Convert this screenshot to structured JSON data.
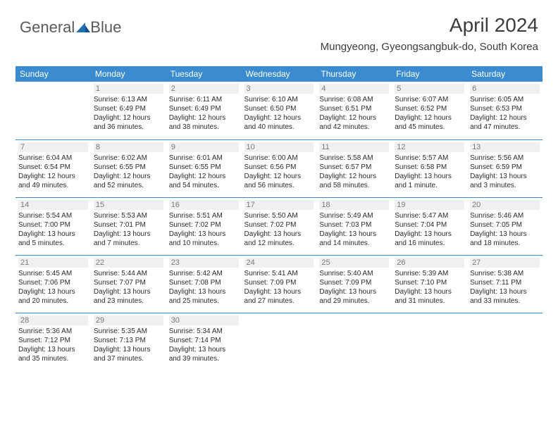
{
  "logo": {
    "word1": "General",
    "word2": "Blue",
    "triangle_color": "#1f6fb2"
  },
  "header": {
    "month_year": "April 2024",
    "location": "Mungyeong, Gyeongsangbuk-do, South Korea",
    "title_color": "#3c3c3c"
  },
  "colors": {
    "header_row_bg": "#3b8bd0",
    "header_row_text": "#ffffff",
    "daynum_bg": "#eef0f1",
    "daynum_text": "#7a7a7a",
    "cell_text": "#2b2b2b",
    "border": "#3b8bd0",
    "background": "#ffffff"
  },
  "calendar": {
    "day_headers": [
      "Sunday",
      "Monday",
      "Tuesday",
      "Wednesday",
      "Thursday",
      "Friday",
      "Saturday"
    ],
    "weeks": [
      [
        null,
        {
          "n": "1",
          "sr": "Sunrise: 6:13 AM",
          "ss": "Sunset: 6:49 PM",
          "d1": "Daylight: 12 hours",
          "d2": "and 36 minutes."
        },
        {
          "n": "2",
          "sr": "Sunrise: 6:11 AM",
          "ss": "Sunset: 6:49 PM",
          "d1": "Daylight: 12 hours",
          "d2": "and 38 minutes."
        },
        {
          "n": "3",
          "sr": "Sunrise: 6:10 AM",
          "ss": "Sunset: 6:50 PM",
          "d1": "Daylight: 12 hours",
          "d2": "and 40 minutes."
        },
        {
          "n": "4",
          "sr": "Sunrise: 6:08 AM",
          "ss": "Sunset: 6:51 PM",
          "d1": "Daylight: 12 hours",
          "d2": "and 42 minutes."
        },
        {
          "n": "5",
          "sr": "Sunrise: 6:07 AM",
          "ss": "Sunset: 6:52 PM",
          "d1": "Daylight: 12 hours",
          "d2": "and 45 minutes."
        },
        {
          "n": "6",
          "sr": "Sunrise: 6:05 AM",
          "ss": "Sunset: 6:53 PM",
          "d1": "Daylight: 12 hours",
          "d2": "and 47 minutes."
        }
      ],
      [
        {
          "n": "7",
          "sr": "Sunrise: 6:04 AM",
          "ss": "Sunset: 6:54 PM",
          "d1": "Daylight: 12 hours",
          "d2": "and 49 minutes."
        },
        {
          "n": "8",
          "sr": "Sunrise: 6:02 AM",
          "ss": "Sunset: 6:55 PM",
          "d1": "Daylight: 12 hours",
          "d2": "and 52 minutes."
        },
        {
          "n": "9",
          "sr": "Sunrise: 6:01 AM",
          "ss": "Sunset: 6:55 PM",
          "d1": "Daylight: 12 hours",
          "d2": "and 54 minutes."
        },
        {
          "n": "10",
          "sr": "Sunrise: 6:00 AM",
          "ss": "Sunset: 6:56 PM",
          "d1": "Daylight: 12 hours",
          "d2": "and 56 minutes."
        },
        {
          "n": "11",
          "sr": "Sunrise: 5:58 AM",
          "ss": "Sunset: 6:57 PM",
          "d1": "Daylight: 12 hours",
          "d2": "and 58 minutes."
        },
        {
          "n": "12",
          "sr": "Sunrise: 5:57 AM",
          "ss": "Sunset: 6:58 PM",
          "d1": "Daylight: 13 hours",
          "d2": "and 1 minute."
        },
        {
          "n": "13",
          "sr": "Sunrise: 5:56 AM",
          "ss": "Sunset: 6:59 PM",
          "d1": "Daylight: 13 hours",
          "d2": "and 3 minutes."
        }
      ],
      [
        {
          "n": "14",
          "sr": "Sunrise: 5:54 AM",
          "ss": "Sunset: 7:00 PM",
          "d1": "Daylight: 13 hours",
          "d2": "and 5 minutes."
        },
        {
          "n": "15",
          "sr": "Sunrise: 5:53 AM",
          "ss": "Sunset: 7:01 PM",
          "d1": "Daylight: 13 hours",
          "d2": "and 7 minutes."
        },
        {
          "n": "16",
          "sr": "Sunrise: 5:51 AM",
          "ss": "Sunset: 7:02 PM",
          "d1": "Daylight: 13 hours",
          "d2": "and 10 minutes."
        },
        {
          "n": "17",
          "sr": "Sunrise: 5:50 AM",
          "ss": "Sunset: 7:02 PM",
          "d1": "Daylight: 13 hours",
          "d2": "and 12 minutes."
        },
        {
          "n": "18",
          "sr": "Sunrise: 5:49 AM",
          "ss": "Sunset: 7:03 PM",
          "d1": "Daylight: 13 hours",
          "d2": "and 14 minutes."
        },
        {
          "n": "19",
          "sr": "Sunrise: 5:47 AM",
          "ss": "Sunset: 7:04 PM",
          "d1": "Daylight: 13 hours",
          "d2": "and 16 minutes."
        },
        {
          "n": "20",
          "sr": "Sunrise: 5:46 AM",
          "ss": "Sunset: 7:05 PM",
          "d1": "Daylight: 13 hours",
          "d2": "and 18 minutes."
        }
      ],
      [
        {
          "n": "21",
          "sr": "Sunrise: 5:45 AM",
          "ss": "Sunset: 7:06 PM",
          "d1": "Daylight: 13 hours",
          "d2": "and 20 minutes."
        },
        {
          "n": "22",
          "sr": "Sunrise: 5:44 AM",
          "ss": "Sunset: 7:07 PM",
          "d1": "Daylight: 13 hours",
          "d2": "and 23 minutes."
        },
        {
          "n": "23",
          "sr": "Sunrise: 5:42 AM",
          "ss": "Sunset: 7:08 PM",
          "d1": "Daylight: 13 hours",
          "d2": "and 25 minutes."
        },
        {
          "n": "24",
          "sr": "Sunrise: 5:41 AM",
          "ss": "Sunset: 7:09 PM",
          "d1": "Daylight: 13 hours",
          "d2": "and 27 minutes."
        },
        {
          "n": "25",
          "sr": "Sunrise: 5:40 AM",
          "ss": "Sunset: 7:09 PM",
          "d1": "Daylight: 13 hours",
          "d2": "and 29 minutes."
        },
        {
          "n": "26",
          "sr": "Sunrise: 5:39 AM",
          "ss": "Sunset: 7:10 PM",
          "d1": "Daylight: 13 hours",
          "d2": "and 31 minutes."
        },
        {
          "n": "27",
          "sr": "Sunrise: 5:38 AM",
          "ss": "Sunset: 7:11 PM",
          "d1": "Daylight: 13 hours",
          "d2": "and 33 minutes."
        }
      ],
      [
        {
          "n": "28",
          "sr": "Sunrise: 5:36 AM",
          "ss": "Sunset: 7:12 PM",
          "d1": "Daylight: 13 hours",
          "d2": "and 35 minutes."
        },
        {
          "n": "29",
          "sr": "Sunrise: 5:35 AM",
          "ss": "Sunset: 7:13 PM",
          "d1": "Daylight: 13 hours",
          "d2": "and 37 minutes."
        },
        {
          "n": "30",
          "sr": "Sunrise: 5:34 AM",
          "ss": "Sunset: 7:14 PM",
          "d1": "Daylight: 13 hours",
          "d2": "and 39 minutes."
        },
        null,
        null,
        null,
        null
      ]
    ]
  }
}
